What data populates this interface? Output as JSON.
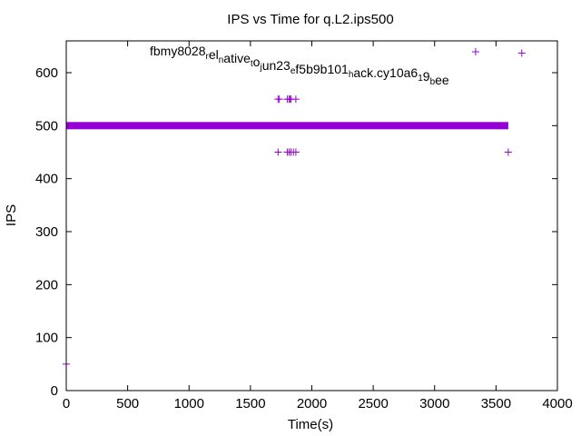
{
  "chart_data": {
    "type": "scatter",
    "title": "IPS vs Time for q.L2.ips500",
    "xlabel": "Time(s)",
    "ylabel": "IPS",
    "xlim": [
      0,
      4000
    ],
    "ylim": [
      0,
      660
    ],
    "x_ticks": [
      0,
      500,
      1000,
      1500,
      2000,
      2500,
      3000,
      3500,
      4000
    ],
    "y_ticks": [
      0,
      100,
      200,
      300,
      400,
      500,
      600
    ],
    "grid": false,
    "legend_position": "top-center",
    "marker": "+",
    "series": [
      {
        "name": "fbmy8028_relative_to_jun23_ef5b9b101_hack.cy10a6_19_bee",
        "color": "#9400d3",
        "dense_band": {
          "y": 500,
          "x_range": [
            0,
            3600
          ]
        },
        "points": [
          [
            0,
            50
          ],
          [
            1725,
            550
          ],
          [
            1735,
            550
          ],
          [
            1800,
            550
          ],
          [
            1815,
            550
          ],
          [
            1820,
            550
          ],
          [
            1830,
            550
          ],
          [
            1870,
            550
          ],
          [
            1725,
            450
          ],
          [
            1800,
            450
          ],
          [
            1815,
            450
          ],
          [
            1830,
            450
          ],
          [
            1850,
            450
          ],
          [
            1870,
            450
          ],
          [
            3600,
            450
          ],
          [
            3710,
            637
          ]
        ]
      }
    ]
  },
  "legend": {
    "parts": [
      {
        "text": "fbmy8028",
        "sub": false
      },
      {
        "text": "r",
        "sub": true
      },
      {
        "text": "el",
        "sub": false
      },
      {
        "text": "n",
        "sub": true
      },
      {
        "text": "ative",
        "sub": false
      },
      {
        "text": "t",
        "sub": true
      },
      {
        "text": "o",
        "sub": false
      },
      {
        "text": "j",
        "sub": true
      },
      {
        "text": "un23",
        "sub": false
      },
      {
        "text": "e",
        "sub": true
      },
      {
        "text": "f5b9b101",
        "sub": false
      },
      {
        "text": "h",
        "sub": true
      },
      {
        "text": "ack.cy10a6",
        "sub": false
      },
      {
        "text": "1",
        "sub": true
      },
      {
        "text": "9",
        "sub": false
      },
      {
        "text": "b",
        "sub": true
      },
      {
        "text": "ee",
        "sub": false
      }
    ]
  }
}
